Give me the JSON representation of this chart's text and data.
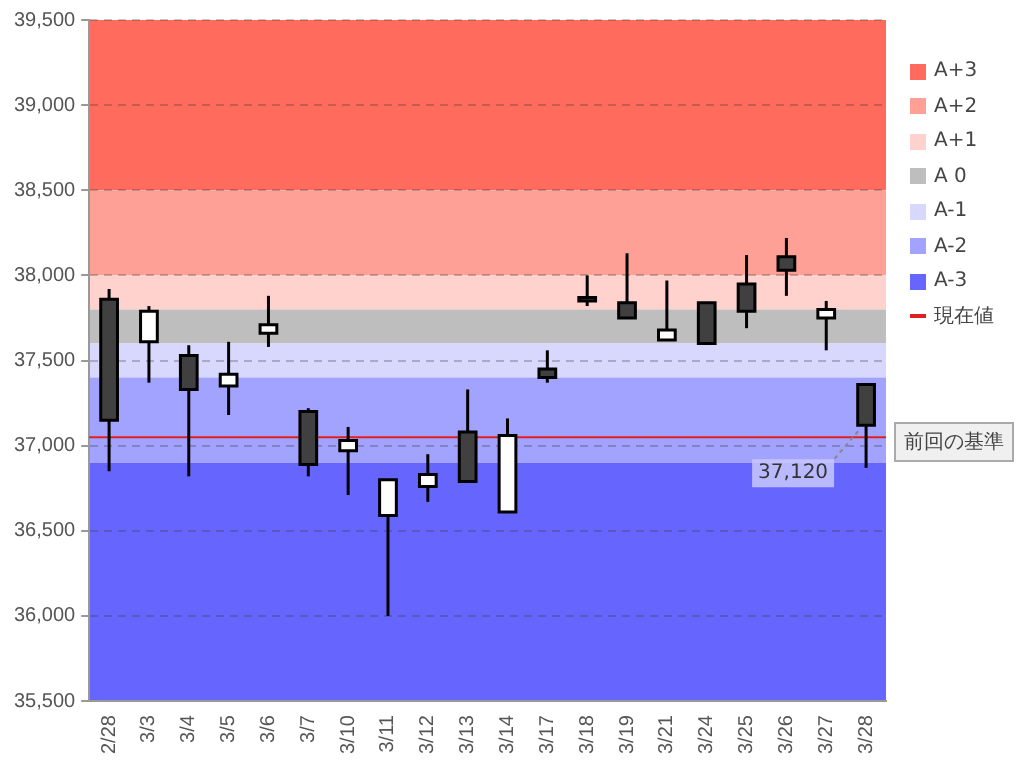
{
  "chart_data": {
    "type": "candlestick",
    "categories": [
      "2/28",
      "3/3",
      "3/4",
      "3/5",
      "3/6",
      "3/7",
      "3/10",
      "3/11",
      "3/12",
      "3/13",
      "3/14",
      "3/17",
      "3/18",
      "3/19",
      "3/21",
      "3/24",
      "3/25",
      "3/26",
      "3/27",
      "3/28"
    ],
    "ohlc": [
      [
        37860,
        37920,
        36850,
        37150
      ],
      [
        37610,
        37820,
        37370,
        37790
      ],
      [
        37530,
        37590,
        36820,
        37330
      ],
      [
        37350,
        37610,
        37180,
        37420
      ],
      [
        37660,
        37880,
        37580,
        37710
      ],
      [
        37200,
        37220,
        36820,
        36890
      ],
      [
        36970,
        37110,
        36710,
        37030
      ],
      [
        36590,
        36800,
        36000,
        36800
      ],
      [
        36760,
        36950,
        36670,
        36830
      ],
      [
        37080,
        37330,
        36790,
        36790
      ],
      [
        36610,
        37160,
        36610,
        37060
      ],
      [
        37450,
        37560,
        37370,
        37400
      ],
      [
        37870,
        38000,
        37820,
        37850
      ],
      [
        37840,
        38130,
        37750,
        37750
      ],
      [
        37620,
        37970,
        37620,
        37680
      ],
      [
        37840,
        37840,
        37600,
        37600
      ],
      [
        37950,
        38120,
        37690,
        37790
      ],
      [
        38110,
        38220,
        37880,
        38030
      ],
      [
        37750,
        37850,
        37560,
        37800
      ],
      [
        37360,
        37360,
        36870,
        37120
      ]
    ],
    "colors": [
      "#404040",
      "#ffffff",
      "#404040",
      "#ffffff",
      "#ffffff",
      "#404040",
      "#ffffff",
      "#ffffff",
      "#ffffff",
      "#404040",
      "#ffffff",
      "#404040",
      "#404040",
      "#404040",
      "#ffffff",
      "#404040",
      "#404040",
      "#404040",
      "#ffffff",
      "#404040"
    ],
    "ylim": [
      35500,
      39500
    ],
    "yticks": [
      {
        "value": 35500,
        "label": "35,500"
      },
      {
        "value": 36000,
        "label": "36,000"
      },
      {
        "value": 36500,
        "label": "36,500"
      },
      {
        "value": 37000,
        "label": "37,000"
      },
      {
        "value": 37500,
        "label": "37,500"
      },
      {
        "value": 38000,
        "label": "38,000"
      },
      {
        "value": 38500,
        "label": "38,500"
      },
      {
        "value": 39000,
        "label": "39,000"
      },
      {
        "value": 39500,
        "label": "39,500"
      }
    ],
    "grid": "y",
    "legend": "right",
    "bands": [
      {
        "axis": "y",
        "from": 38500,
        "to": 39500,
        "label": "A+3",
        "color": "#ff6b5c"
      },
      {
        "axis": "y",
        "from": 38000,
        "to": 38500,
        "label": "A+2",
        "color": "#ffa096"
      },
      {
        "axis": "y",
        "from": 37800,
        "to": 38000,
        "label": "A+1",
        "color": "#ffd2cd"
      },
      {
        "axis": "y",
        "from": 37600,
        "to": 37800,
        "label": "A 0",
        "color": "#bebebe"
      },
      {
        "axis": "y",
        "from": 37400,
        "to": 37600,
        "label": "A-1",
        "color": "#d8d8ff"
      },
      {
        "axis": "y",
        "from": 36900,
        "to": 37400,
        "label": "A-2",
        "color": "#a2a2ff"
      },
      {
        "axis": "y",
        "from": 35500,
        "to": 36900,
        "label": "A-3",
        "color": "#6666ff"
      }
    ],
    "ref_lines": [
      {
        "axis": "y",
        "value": 37050,
        "label": "現在値",
        "color": "#e02020"
      }
    ],
    "annotations": [
      {
        "text": "37,120",
        "x": "3/28",
        "y": 37120
      },
      {
        "text": "前回の基準",
        "x": "3/28",
        "y": 37120
      }
    ]
  }
}
